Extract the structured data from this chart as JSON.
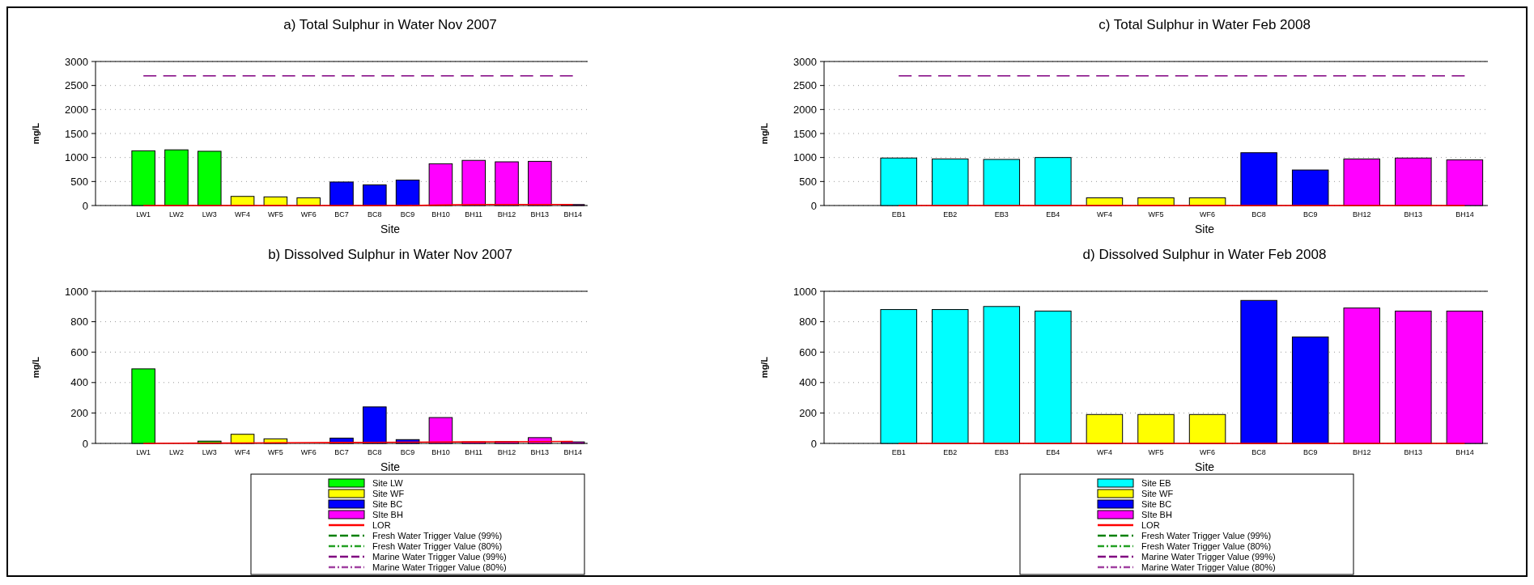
{
  "chart_data": [
    {
      "type": "bar",
      "title": "a) Total Sulphur in Water Nov 2007",
      "xlabel": "Site",
      "ylabel": "mg/L",
      "categories": [
        "LW1",
        "LW2",
        "LW3",
        "WF4",
        "WF5",
        "WF6",
        "BC7",
        "BC8",
        "BC9",
        "BH10",
        "BH11",
        "BH12",
        "BH13",
        "BH14"
      ],
      "ylim": [
        0,
        3000
      ],
      "yticks": [
        0,
        500,
        1000,
        1500,
        2000,
        2500,
        3000
      ],
      "grid": "y",
      "legend": false,
      "series": [
        {
          "color": "#00ff00",
          "values": [
            1140,
            1160,
            1130,
            null,
            null,
            null,
            null,
            null,
            null,
            null,
            null,
            null,
            null,
            null
          ]
        },
        {
          "color": "#ffff00",
          "values": [
            null,
            null,
            null,
            190,
            180,
            160,
            null,
            null,
            null,
            null,
            null,
            null,
            null,
            null
          ]
        },
        {
          "color": "#0000ff",
          "values": [
            null,
            null,
            null,
            null,
            null,
            null,
            490,
            430,
            530,
            null,
            null,
            null,
            null,
            null
          ]
        },
        {
          "color": "#ff00ff",
          "values": [
            null,
            null,
            null,
            null,
            null,
            null,
            null,
            null,
            null,
            870,
            940,
            910,
            920,
            20
          ]
        },
        {
          "type": "line",
          "color": "#ff0000",
          "line_style": "solid",
          "values": [
            0,
            0,
            0,
            0,
            0,
            0,
            0,
            0,
            0,
            10,
            20,
            20,
            20,
            20
          ]
        },
        {
          "type": "line",
          "color": "#800080",
          "line_style": "dashed",
          "values": [
            2700,
            2700,
            2700,
            2700,
            2700,
            2700,
            2700,
            2700,
            2700,
            2700,
            2700,
            2700,
            2700,
            2700
          ]
        }
      ]
    },
    {
      "type": "bar",
      "title": "b) Dissolved Sulphur in Water Nov 2007",
      "xlabel": "Site",
      "ylabel": "mg/L",
      "categories": [
        "LW1",
        "LW2",
        "LW3",
        "WF4",
        "WF5",
        "WF6",
        "BC7",
        "BC8",
        "BC9",
        "BH10",
        "BH11",
        "BH12",
        "BH13",
        "BH14"
      ],
      "ylim": [
        0,
        1000
      ],
      "yticks": [
        0,
        200,
        400,
        600,
        800,
        1000
      ],
      "grid": "y",
      "legend": "bottom",
      "series": [
        {
          "name": "Site LW",
          "color": "#00ff00",
          "values": [
            490,
            null,
            15,
            null,
            null,
            null,
            null,
            null,
            null,
            null,
            null,
            null,
            null,
            null
          ]
        },
        {
          "name": "Site WF",
          "color": "#ffff00",
          "values": [
            null,
            null,
            null,
            60,
            30,
            null,
            null,
            null,
            null,
            null,
            null,
            null,
            null,
            null
          ]
        },
        {
          "name": "Site BC",
          "color": "#0000ff",
          "values": [
            null,
            null,
            null,
            null,
            null,
            null,
            35,
            240,
            25,
            null,
            null,
            null,
            null,
            null
          ]
        },
        {
          "name": "SIte BH",
          "color": "#ff00ff",
          "values": [
            null,
            null,
            null,
            null,
            null,
            null,
            null,
            null,
            null,
            170,
            10,
            12,
            38,
            10
          ]
        },
        {
          "name": "LOR",
          "type": "line",
          "color": "#ff0000",
          "line_style": "solid",
          "values": [
            0,
            1,
            2,
            3,
            4,
            5,
            6,
            7,
            8,
            9,
            10,
            11,
            12,
            13
          ]
        },
        {
          "name": "Fresh Water Trigger Value (99%)",
          "type": "line",
          "color": "#008000",
          "line_style": "dashed",
          "values": [
            null,
            null,
            null,
            null,
            null,
            null,
            null,
            null,
            null,
            null,
            null,
            null,
            null,
            null
          ]
        },
        {
          "name": "Fresh Water Trigger Value (80%)",
          "type": "line",
          "color": "#22a022",
          "line_style": "dashdot",
          "values": [
            null,
            null,
            null,
            null,
            null,
            null,
            null,
            null,
            null,
            null,
            null,
            null,
            null,
            null
          ]
        },
        {
          "name": "Marine Water Trigger Value (99%)",
          "type": "line",
          "color": "#800080",
          "line_style": "dashed",
          "values": [
            null,
            null,
            null,
            null,
            null,
            null,
            null,
            null,
            null,
            null,
            null,
            null,
            null,
            null
          ]
        },
        {
          "name": "Marine Water Trigger Value (80%)",
          "type": "line",
          "color": "#a040a0",
          "line_style": "dashdot",
          "values": [
            null,
            null,
            null,
            null,
            null,
            null,
            null,
            null,
            null,
            null,
            null,
            null,
            null,
            null
          ]
        }
      ]
    },
    {
      "type": "bar",
      "title": "c) Total Sulphur in Water Feb 2008",
      "xlabel": "Site",
      "ylabel": "mg/L",
      "categories": [
        "EB1",
        "EB2",
        "EB3",
        "EB4",
        "WF4",
        "WF5",
        "WF6",
        "BC8",
        "BC9",
        "BH12",
        "BH13",
        "BH14"
      ],
      "ylim": [
        0,
        3000
      ],
      "yticks": [
        0,
        500,
        1000,
        1500,
        2000,
        2500,
        3000
      ],
      "grid": "y",
      "legend": false,
      "series": [
        {
          "color": "#00ffff",
          "values": [
            990,
            970,
            960,
            1000,
            null,
            null,
            null,
            null,
            null,
            null,
            null,
            null
          ]
        },
        {
          "color": "#ffff00",
          "values": [
            null,
            null,
            null,
            null,
            160,
            160,
            160,
            null,
            null,
            null,
            null,
            null
          ]
        },
        {
          "color": "#0000ff",
          "values": [
            null,
            null,
            null,
            null,
            null,
            null,
            null,
            1100,
            740,
            null,
            null,
            null
          ]
        },
        {
          "color": "#ff00ff",
          "values": [
            null,
            null,
            null,
            null,
            null,
            null,
            null,
            null,
            null,
            970,
            990,
            950
          ]
        },
        {
          "type": "line",
          "color": "#ff0000",
          "line_style": "solid",
          "values": [
            0,
            0,
            0,
            0,
            0,
            0,
            0,
            0,
            0,
            0,
            0,
            0
          ]
        },
        {
          "type": "line",
          "color": "#800080",
          "line_style": "dashed",
          "values": [
            2700,
            2700,
            2700,
            2700,
            2700,
            2700,
            2700,
            2700,
            2700,
            2700,
            2700,
            2700
          ]
        }
      ]
    },
    {
      "type": "bar",
      "title": "d) Dissolved Sulphur in Water Feb 2008",
      "xlabel": "Site",
      "ylabel": "mg/L",
      "categories": [
        "EB1",
        "EB2",
        "EB3",
        "EB4",
        "WF4",
        "WF5",
        "WF6",
        "BC8",
        "BC9",
        "BH12",
        "BH13",
        "BH14"
      ],
      "ylim": [
        0,
        1000
      ],
      "yticks": [
        0,
        200,
        400,
        600,
        800,
        1000
      ],
      "grid": "y",
      "legend": "bottom",
      "series": [
        {
          "name": "Site EB",
          "color": "#00ffff",
          "values": [
            880,
            880,
            900,
            870,
            null,
            null,
            null,
            null,
            null,
            null,
            null,
            null
          ]
        },
        {
          "name": "Site WF",
          "color": "#ffff00",
          "values": [
            null,
            null,
            null,
            null,
            190,
            190,
            190,
            null,
            null,
            null,
            null,
            null
          ]
        },
        {
          "name": "Site BC",
          "color": "#0000ff",
          "values": [
            null,
            null,
            null,
            null,
            null,
            null,
            null,
            940,
            700,
            null,
            null,
            null
          ]
        },
        {
          "name": "SIte BH",
          "color": "#ff00ff",
          "values": [
            null,
            null,
            null,
            null,
            null,
            null,
            null,
            null,
            null,
            890,
            870,
            870
          ]
        },
        {
          "name": "LOR",
          "type": "line",
          "color": "#ff0000",
          "line_style": "solid",
          "values": [
            0,
            0,
            0,
            0,
            0,
            0,
            0,
            0,
            0,
            0,
            0,
            0
          ]
        },
        {
          "name": "Fresh Water Trigger Value (99%)",
          "type": "line",
          "color": "#008000",
          "line_style": "dashed",
          "values": [
            null,
            null,
            null,
            null,
            null,
            null,
            null,
            null,
            null,
            null,
            null,
            null
          ]
        },
        {
          "name": "Fresh Water Trigger Value (80%)",
          "type": "line",
          "color": "#22a022",
          "line_style": "dashdot",
          "values": [
            null,
            null,
            null,
            null,
            null,
            null,
            null,
            null,
            null,
            null,
            null,
            null
          ]
        },
        {
          "name": "Marine Water Trigger Value (99%)",
          "type": "line",
          "color": "#800080",
          "line_style": "dashed",
          "values": [
            null,
            null,
            null,
            null,
            null,
            null,
            null,
            null,
            null,
            null,
            null,
            null
          ]
        },
        {
          "name": "Marine Water Trigger Value (80%)",
          "type": "line",
          "color": "#a040a0",
          "line_style": "dashdot",
          "values": [
            null,
            null,
            null,
            null,
            null,
            null,
            null,
            null,
            null,
            null,
            null,
            null
          ]
        }
      ]
    }
  ]
}
